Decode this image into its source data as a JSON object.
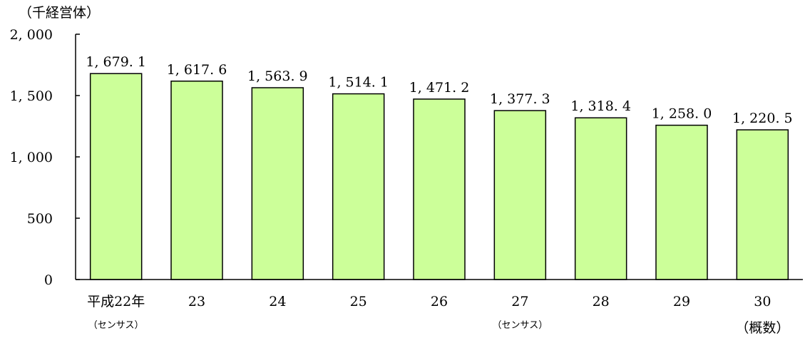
{
  "chart_data": {
    "type": "bar",
    "unit_label": "（千経営体）",
    "categories": [
      {
        "label": "平成22年",
        "sub": "（センサス）",
        "sub_size": "small"
      },
      {
        "label": "23",
        "sub": "",
        "sub_size": "small"
      },
      {
        "label": "24",
        "sub": "",
        "sub_size": "small"
      },
      {
        "label": "25",
        "sub": "",
        "sub_size": "small"
      },
      {
        "label": "26",
        "sub": "",
        "sub_size": "small"
      },
      {
        "label": "27",
        "sub": "（センサス）",
        "sub_size": "small"
      },
      {
        "label": "28",
        "sub": "",
        "sub_size": "small"
      },
      {
        "label": "29",
        "sub": "",
        "sub_size": "small"
      },
      {
        "label": "30",
        "sub": "（概数）",
        "sub_size": "large"
      }
    ],
    "values": [
      1679.1,
      1617.6,
      1563.9,
      1514.1,
      1471.2,
      1377.3,
      1318.4,
      1258.0,
      1220.5
    ],
    "value_labels": [
      "1, 679. 1",
      "1, 617. 6",
      "1, 563. 9",
      "1, 514. 1",
      "1, 471. 2",
      "1, 377. 3",
      "1, 318. 4",
      "1, 258. 0",
      "1, 220. 5"
    ],
    "ylim": [
      0,
      2000
    ],
    "yticks": [
      0,
      500,
      1000,
      1500,
      2000
    ],
    "ytick_labels": [
      "0",
      "500",
      "1, 000",
      "1, 500",
      "2, 000"
    ],
    "grid": false,
    "legend": "none",
    "colors": {
      "bar_fill": "#ccff99",
      "bar_stroke": "#000000",
      "axis": "#000000"
    }
  }
}
